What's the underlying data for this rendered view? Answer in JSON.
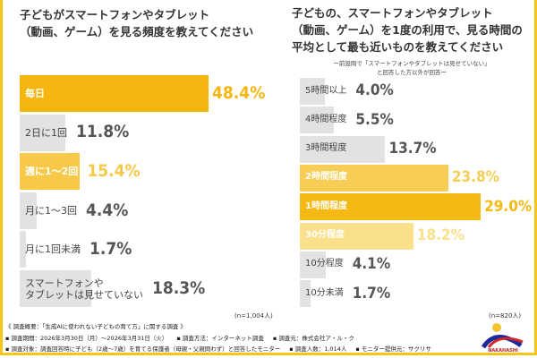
{
  "chart_data": [
    {
      "type": "bar",
      "orientation": "horizontal",
      "title": "子どもがスマートフォンやタブレット（動画、ゲーム）を見る頻度を教えてください",
      "title_lines": [
        "子どもがスマートフォンやタブレット",
        "（動画、ゲーム）を見る頻度を教えてください"
      ],
      "categories": [
        "毎日",
        "2日に1回",
        "週に1〜2回",
        "月に1〜3回",
        "月に1回未満",
        "スマートフォンや\nタブレットは見せていない"
      ],
      "values": [
        48.4,
        11.8,
        15.4,
        4.4,
        1.7,
        18.3
      ],
      "value_labels": [
        "48.4%",
        "11.8%",
        "15.4%",
        "4.4%",
        "1.7%",
        "18.3%"
      ],
      "bar_colors": [
        "#f5b50f",
        "#e2e2e2",
        "#f8c948",
        "#e2e2e2",
        "#e2e2e2",
        "#e2e2e2"
      ],
      "sample_note": "(n=1,004人)"
    },
    {
      "type": "bar",
      "orientation": "horizontal",
      "title": "子どもの、スマートフォンやタブレット（動画、ゲーム）を1度の利用で、見る時間の平均として最も近いものを教えてください",
      "title_lines": [
        "子どもの、スマートフォンやタブレット",
        "（動画、ゲーム）を1度の利用で、見る時間の",
        "平均として最も近いものを教えてください"
      ],
      "subtitle_lines": [
        "ー前設問で「スマートフォンやタブレットは見せていない」",
        "と回答した方以外が回答ー"
      ],
      "categories": [
        "5時間以上",
        "4時間程度",
        "3時間程度",
        "2時間程度",
        "1時間程度",
        "30分程度",
        "10分程度",
        "10分未満"
      ],
      "values": [
        4.0,
        5.5,
        13.7,
        23.8,
        29.0,
        18.2,
        4.1,
        1.7
      ],
      "value_labels": [
        "4.0%",
        "5.5%",
        "13.7%",
        "23.8%",
        "29.0%",
        "18.2%",
        "4.1%",
        "1.7%"
      ],
      "bar_colors": [
        "#e2e2e2",
        "#e2e2e2",
        "#e2e2e2",
        "#f8cd55",
        "#f5b914",
        "#fae08a",
        "#e2e2e2",
        "#e2e2e2"
      ],
      "sample_note": "(n=820人)"
    }
  ],
  "colors": {
    "frame": "#f5c518",
    "gray_value": "#555555"
  },
  "footer": {
    "heading": "《 調査概要：「生成AIに使われない子どもの育て方」に関する調査 》",
    "period": "▪ 調査期間：2026年3月30日（月）〜2026年3月31日（火）",
    "method": "▪ 調査方法：インターネット調査",
    "organizer": "▪ 調査元：株式会社ア・ル・ク",
    "target": "▪ 調査対象：調査回答時に子ども（2歳〜7歳）を育てる保護者（母親・父親問わず）と回答したモニター",
    "count": "▪ 調査人数：1,014人",
    "provider": "▪ モニター提供元：サクリサ"
  },
  "logo": {
    "text": "NAKAHASHI"
  }
}
